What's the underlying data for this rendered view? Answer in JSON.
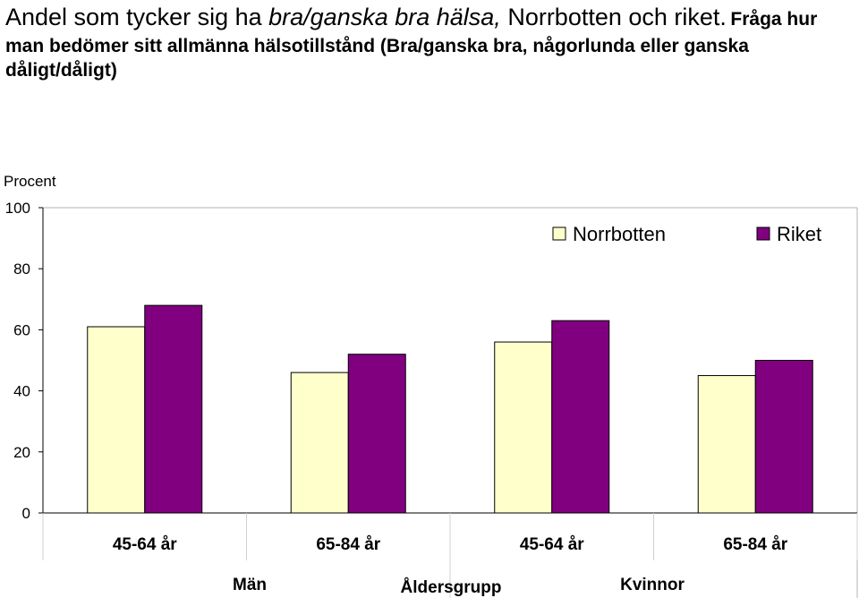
{
  "header": {
    "title_a": "Andel som tycker sig ha ",
    "title_b": "bra/ganska bra hälsa,",
    "title_c": " Norrbotten och riket.",
    "subtitle": "Fråga hur man bedömer sitt allmänna hälsotillstånd (Bra/ganska bra, någorlunda eller ganska dåligt/dåligt)"
  },
  "colors": {
    "norrbotten": "#FFFFCC",
    "riket": "#800080"
  },
  "chart_data": {
    "type": "bar",
    "title": "Andel som tycker sig ha bra/ganska bra hälsa, Norrbotten och riket.",
    "subtitle": "Fråga hur man bedömer sitt allmänna hälsotillstånd (Bra/ganska bra, någorlunda eller ganska dåligt/dåligt)",
    "ylabel": "Procent",
    "xlabel": "Åldersgrupp",
    "ylim": [
      0,
      100
    ],
    "yticks": [
      "0",
      "20",
      "40",
      "60",
      "80",
      "100"
    ],
    "categories": [
      "45-64 år",
      "65-84 år",
      "45-64 år",
      "65-84 år"
    ],
    "groups": [
      {
        "label": "Män",
        "categories": [
          0,
          1
        ]
      },
      {
        "label": "Kvinnor",
        "categories": [
          2,
          3
        ]
      }
    ],
    "series": [
      {
        "name": "Norrbotten",
        "values": [
          61,
          46,
          56,
          45
        ]
      },
      {
        "name": "Riket",
        "values": [
          68,
          52,
          63,
          50
        ]
      }
    ],
    "legend": "top-right",
    "grid": false
  }
}
